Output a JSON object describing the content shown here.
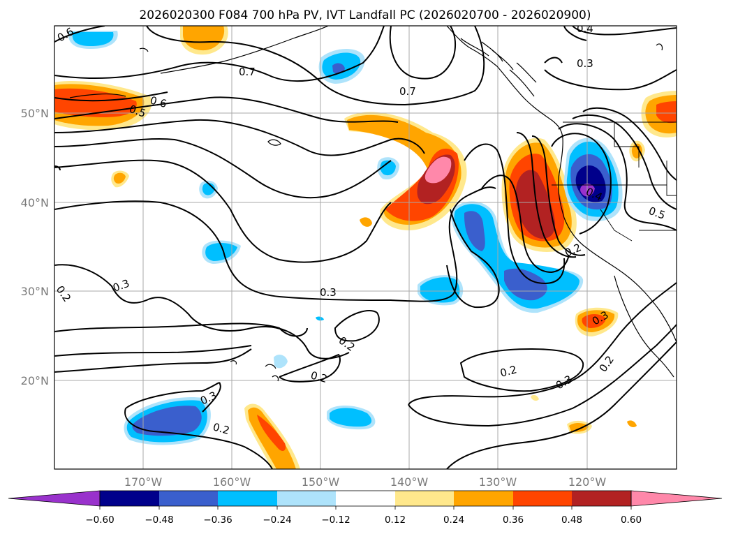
{
  "title": "2026020300 F084 700 hPa PV, IVT Landfall PC (2026020700 - 2026020900)",
  "map": {
    "lat_labels": [
      "50°N",
      "40°N",
      "30°N",
      "20°N"
    ],
    "lon_labels": [
      "170°W",
      "160°W",
      "150°W",
      "140°W",
      "130°W",
      "120°W"
    ],
    "grid": true
  },
  "colorbar": {
    "tick_labels": [
      "−0.60",
      "−0.48",
      "−0.36",
      "−0.24",
      "−0.12",
      "0.12",
      "0.24",
      "0.36",
      "0.48",
      "0.60"
    ],
    "colors": [
      "#9932cc",
      "#00008b",
      "#3a5fcd",
      "#00bfff",
      "#aee3fb",
      "#ffffff",
      "#ffe88c",
      "#ffa500",
      "#ff4500",
      "#b22222",
      "#ff88aa"
    ],
    "extend": "both"
  },
  "contour_labels": [
    {
      "text": "0.6",
      "id": "c1"
    },
    {
      "text": "0.5",
      "id": "c2"
    },
    {
      "text": "0.6",
      "id": "c3"
    },
    {
      "text": "0.7",
      "id": "c4"
    },
    {
      "text": "0.7",
      "id": "c5"
    },
    {
      "text": "0.4",
      "id": "c6"
    },
    {
      "text": "0.3",
      "id": "c7"
    },
    {
      "text": "0.4",
      "id": "c8"
    },
    {
      "text": "0.5",
      "id": "c9"
    },
    {
      "text": "0.2",
      "id": "c10"
    },
    {
      "text": "0.3",
      "id": "c11"
    },
    {
      "text": "0.2",
      "id": "c12"
    },
    {
      "text": "0.3",
      "id": "c13"
    },
    {
      "text": "0.2",
      "id": "c14"
    },
    {
      "text": "0.2",
      "id": "c15"
    },
    {
      "text": "0.3",
      "id": "c16"
    },
    {
      "text": "0.2",
      "id": "c17"
    },
    {
      "text": "0.3",
      "id": "c18"
    },
    {
      "text": "0.2",
      "id": "c19"
    },
    {
      "text": "0.3",
      "id": "c20"
    },
    {
      "text": "0.2",
      "id": "c21"
    }
  ]
}
